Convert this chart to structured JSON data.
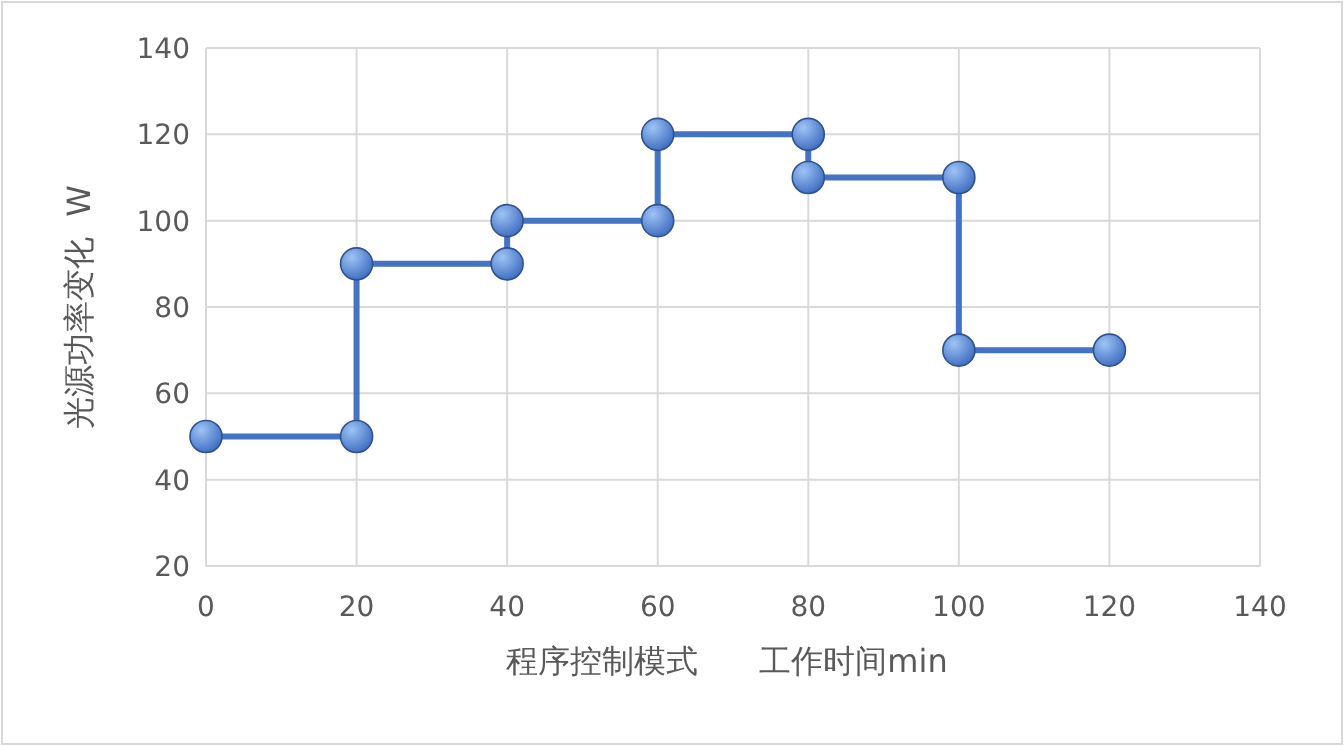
{
  "chart_data": {
    "type": "line",
    "xlabel": "程序控制模式      工作时间min",
    "ylabel": "光源功率变化  W",
    "x": [
      0,
      20,
      20,
      40,
      40,
      60,
      60,
      80,
      80,
      100,
      100,
      120
    ],
    "values": [
      50,
      50,
      90,
      90,
      100,
      100,
      120,
      120,
      110,
      110,
      70,
      70
    ],
    "color": "#4472c4",
    "xlim": [
      0,
      140
    ],
    "ylim": [
      20,
      140
    ],
    "xticks": [
      0,
      20,
      40,
      60,
      80,
      100,
      120,
      140
    ],
    "yticks": [
      20,
      40,
      60,
      80,
      100,
      120,
      140
    ],
    "grid": true,
    "marker": "circle",
    "line_style": "solid"
  }
}
